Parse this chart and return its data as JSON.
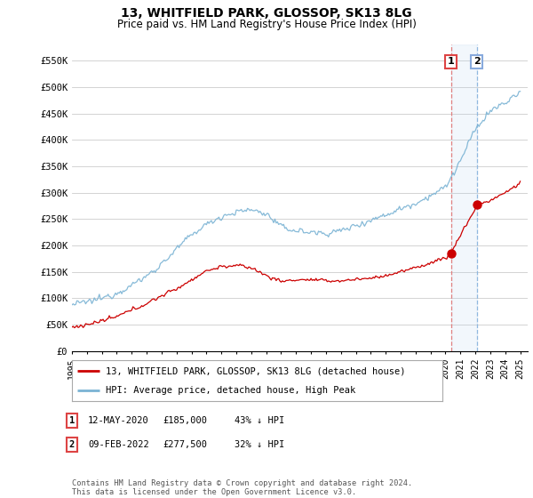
{
  "title": "13, WHITFIELD PARK, GLOSSOP, SK13 8LG",
  "subtitle": "Price paid vs. HM Land Registry's House Price Index (HPI)",
  "ylabel_ticks": [
    "£0",
    "£50K",
    "£100K",
    "£150K",
    "£200K",
    "£250K",
    "£300K",
    "£350K",
    "£400K",
    "£450K",
    "£500K",
    "£550K"
  ],
  "ytick_values": [
    0,
    50000,
    100000,
    150000,
    200000,
    250000,
    300000,
    350000,
    400000,
    450000,
    500000,
    550000
  ],
  "ylim": [
    0,
    580000
  ],
  "xlim_start": 1995.0,
  "xlim_end": 2025.5,
  "hpi_color": "#7ab3d4",
  "price_color": "#cc0000",
  "marker1_x": 2020.37,
  "marker1_y": 185000,
  "marker2_x": 2022.1,
  "marker2_y": 277500,
  "legend_label_red": "13, WHITFIELD PARK, GLOSSOP, SK13 8LG (detached house)",
  "legend_label_blue": "HPI: Average price, detached house, High Peak",
  "footnote": "Contains HM Land Registry data © Crown copyright and database right 2024.\nThis data is licensed under the Open Government Licence v3.0.",
  "table_rows": [
    [
      "1",
      "12-MAY-2020",
      "£185,000",
      "43% ↓ HPI"
    ],
    [
      "2",
      "09-FEB-2022",
      "£277,500",
      "32% ↓ HPI"
    ]
  ],
  "background_color": "#ffffff",
  "grid_color": "#cccccc"
}
